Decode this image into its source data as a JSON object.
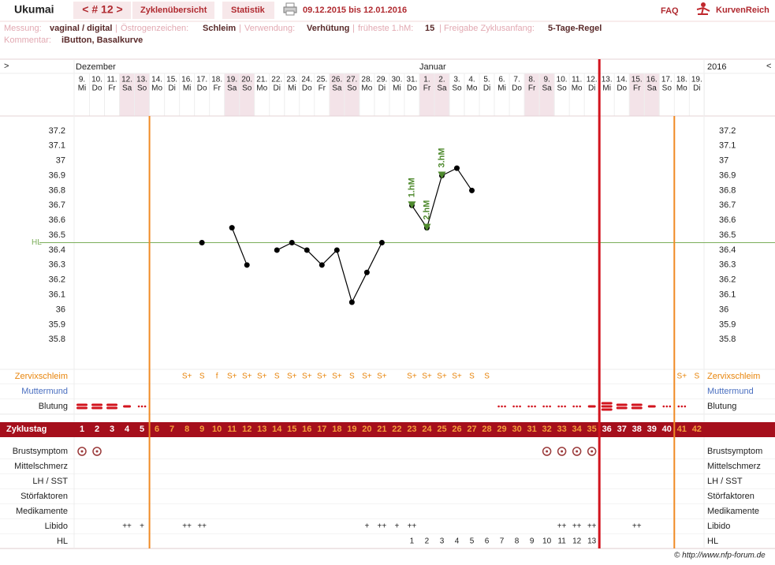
{
  "header": {
    "user": "Ukumai",
    "cycle_nav": "< # 12 >",
    "tabs": [
      "Zyklenübersicht",
      "Statistik"
    ],
    "date_range": "09.12.2015 bis 12.01.2016",
    "faq": "FAQ",
    "logo": "KurvenReich"
  },
  "info": {
    "separator": "|",
    "items": [
      {
        "label": "Messung:",
        "value": "vaginal / digital"
      },
      {
        "label": "Östrogenzeichen:",
        "value": "Schleim"
      },
      {
        "label": "Verwendung:",
        "value": "Verhütung"
      },
      {
        "label": "früheste 1.hM:",
        "value": "15"
      },
      {
        "label": "Freigabe Zyklusanfang:",
        "value": "5-Tage-Regel"
      }
    ],
    "comment": {
      "label": "Kommentar:",
      "value": "iButton, Basalkurve"
    }
  },
  "chart_data": {
    "type": "line",
    "nav_left": ">",
    "nav_right": "<",
    "months": [
      "Dezember",
      "Januar"
    ],
    "year": "2016",
    "categories": [
      "9.",
      "10.",
      "11.",
      "12.",
      "13.",
      "14.",
      "15.",
      "16.",
      "17.",
      "18.",
      "19.",
      "20.",
      "21.",
      "22.",
      "23.",
      "24.",
      "25.",
      "26.",
      "27.",
      "28.",
      "29.",
      "30.",
      "31.",
      "1.",
      "2.",
      "3.",
      "4.",
      "5.",
      "6.",
      "7.",
      "8.",
      "9.",
      "10.",
      "11.",
      "12.",
      "13.",
      "14.",
      "15.",
      "16.",
      "17.",
      "18.",
      "19."
    ],
    "weekdays": [
      "Mi",
      "Do",
      "Fr",
      "Sa",
      "So",
      "Mo",
      "Di",
      "Mi",
      "Do",
      "Fr",
      "Sa",
      "So",
      "Mo",
      "Di",
      "Mi",
      "Do",
      "Fr",
      "Sa",
      "So",
      "Mo",
      "Di",
      "Mi",
      "Do",
      "Fr",
      "Sa",
      "So",
      "Mo",
      "Di",
      "Mi",
      "Do",
      "Fr",
      "Sa",
      "So",
      "Mo",
      "Di",
      "Mi",
      "Do",
      "Fr",
      "Sa",
      "So",
      "Mo",
      "Di"
    ],
    "weekend_columns": [
      3,
      4,
      10,
      11,
      17,
      18,
      23,
      24,
      30,
      31,
      37,
      38
    ],
    "values": [
      null,
      null,
      null,
      null,
      null,
      null,
      null,
      null,
      36.45,
      null,
      36.55,
      36.3,
      null,
      36.4,
      36.45,
      36.4,
      36.3,
      36.4,
      36.05,
      36.25,
      36.45,
      null,
      36.7,
      36.55,
      36.9,
      36.95,
      36.8,
      null,
      null,
      null,
      null,
      null,
      null,
      null,
      null,
      null,
      null,
      null,
      null,
      null,
      null,
      null
    ],
    "color": "#000000",
    "hm_labels": [
      null,
      null,
      null,
      null,
      null,
      null,
      null,
      null,
      null,
      null,
      null,
      null,
      null,
      null,
      null,
      null,
      null,
      null,
      null,
      null,
      null,
      null,
      "1.hM",
      "2.hM",
      "3.hM",
      null,
      null,
      null,
      null,
      null,
      null,
      null,
      null,
      null,
      null,
      null,
      null,
      null,
      null,
      null,
      null,
      null
    ],
    "hm_color": "#4f8a2e",
    "ylim": [
      35.6,
      37.3
    ],
    "yticks": [
      37.2,
      37.1,
      37,
      36.9,
      36.8,
      36.7,
      36.6,
      36.5,
      36.4,
      36.3,
      36.2,
      36.1,
      36,
      35.9,
      35.8
    ],
    "grid": false,
    "hl_line": {
      "label": "HL",
      "value": 36.45,
      "color": "#7cae5a"
    },
    "cycle_lines": [
      {
        "after": 5,
        "color": "#f08a24"
      },
      {
        "after": 35,
        "color": "#d2141e"
      },
      {
        "after": 40,
        "color": "#f08a24"
      }
    ],
    "cycle_days": {
      "label": "Zyklustag",
      "values": [
        1,
        2,
        3,
        4,
        5,
        6,
        7,
        8,
        9,
        10,
        11,
        12,
        13,
        14,
        15,
        16,
        17,
        18,
        19,
        20,
        21,
        22,
        23,
        24,
        25,
        26,
        27,
        28,
        29,
        30,
        31,
        32,
        33,
        34,
        35,
        36,
        37,
        38,
        39,
        40,
        41,
        42
      ]
    },
    "rows": [
      {
        "label": "Zervixschleim",
        "color": "#e8850c",
        "texts": [
          null,
          null,
          null,
          null,
          null,
          null,
          null,
          "S+",
          "S",
          "f",
          "S+",
          "S+",
          "S+",
          "S",
          "S+",
          "S+",
          "S+",
          "S+",
          "S",
          "S+",
          "S+",
          null,
          "S+",
          "S+",
          "S+",
          "S+",
          "S",
          "S",
          null,
          null,
          null,
          null,
          null,
          null,
          null,
          null,
          null,
          null,
          null,
          null,
          "S+",
          "S"
        ]
      },
      {
        "label": "Muttermund",
        "color": "#4a6fc0"
      },
      {
        "label": "Blutung",
        "color": "#222222",
        "levels": [
          3,
          3,
          3,
          2,
          1,
          null,
          null,
          null,
          null,
          null,
          null,
          null,
          null,
          null,
          null,
          null,
          null,
          null,
          null,
          null,
          null,
          null,
          null,
          null,
          null,
          null,
          null,
          null,
          1,
          1,
          1,
          1,
          1,
          1,
          2,
          4,
          3,
          3,
          2,
          1,
          1,
          null
        ]
      },
      {
        "label": "Brustsymptom",
        "color": "#222222",
        "marks": [
          1,
          1,
          null,
          null,
          null,
          null,
          null,
          null,
          null,
          null,
          null,
          null,
          null,
          null,
          null,
          null,
          null,
          null,
          null,
          null,
          null,
          null,
          null,
          null,
          null,
          null,
          null,
          null,
          null,
          null,
          null,
          1,
          1,
          1,
          1,
          null,
          null,
          null,
          null,
          null,
          null,
          null
        ]
      },
      {
        "label": "Mittelschmerz",
        "color": "#222222"
      },
      {
        "label": "LH / SST",
        "color": "#222222"
      },
      {
        "label": "Störfaktoren",
        "color": "#222222"
      },
      {
        "label": "Medikamente",
        "color": "#222222"
      },
      {
        "label": "Libido",
        "color": "#222222",
        "texts": [
          null,
          null,
          null,
          "++",
          "+",
          null,
          null,
          "++",
          "++",
          null,
          null,
          null,
          null,
          null,
          null,
          null,
          null,
          null,
          null,
          "+",
          "++",
          "+",
          "++",
          null,
          null,
          null,
          null,
          null,
          null,
          null,
          null,
          null,
          "++",
          "++",
          "++",
          null,
          null,
          "++",
          null,
          null,
          null,
          null
        ]
      },
      {
        "label": "HL",
        "color": "#222222",
        "texts": [
          null,
          null,
          null,
          null,
          null,
          null,
          null,
          null,
          null,
          null,
          null,
          null,
          null,
          null,
          null,
          null,
          null,
          null,
          null,
          null,
          null,
          null,
          1,
          2,
          3,
          4,
          5,
          6,
          7,
          8,
          9,
          10,
          11,
          12,
          13,
          null,
          null,
          null,
          null,
          null,
          null,
          null
        ]
      }
    ]
  },
  "footer": "© http://www.nfp-forum.de"
}
